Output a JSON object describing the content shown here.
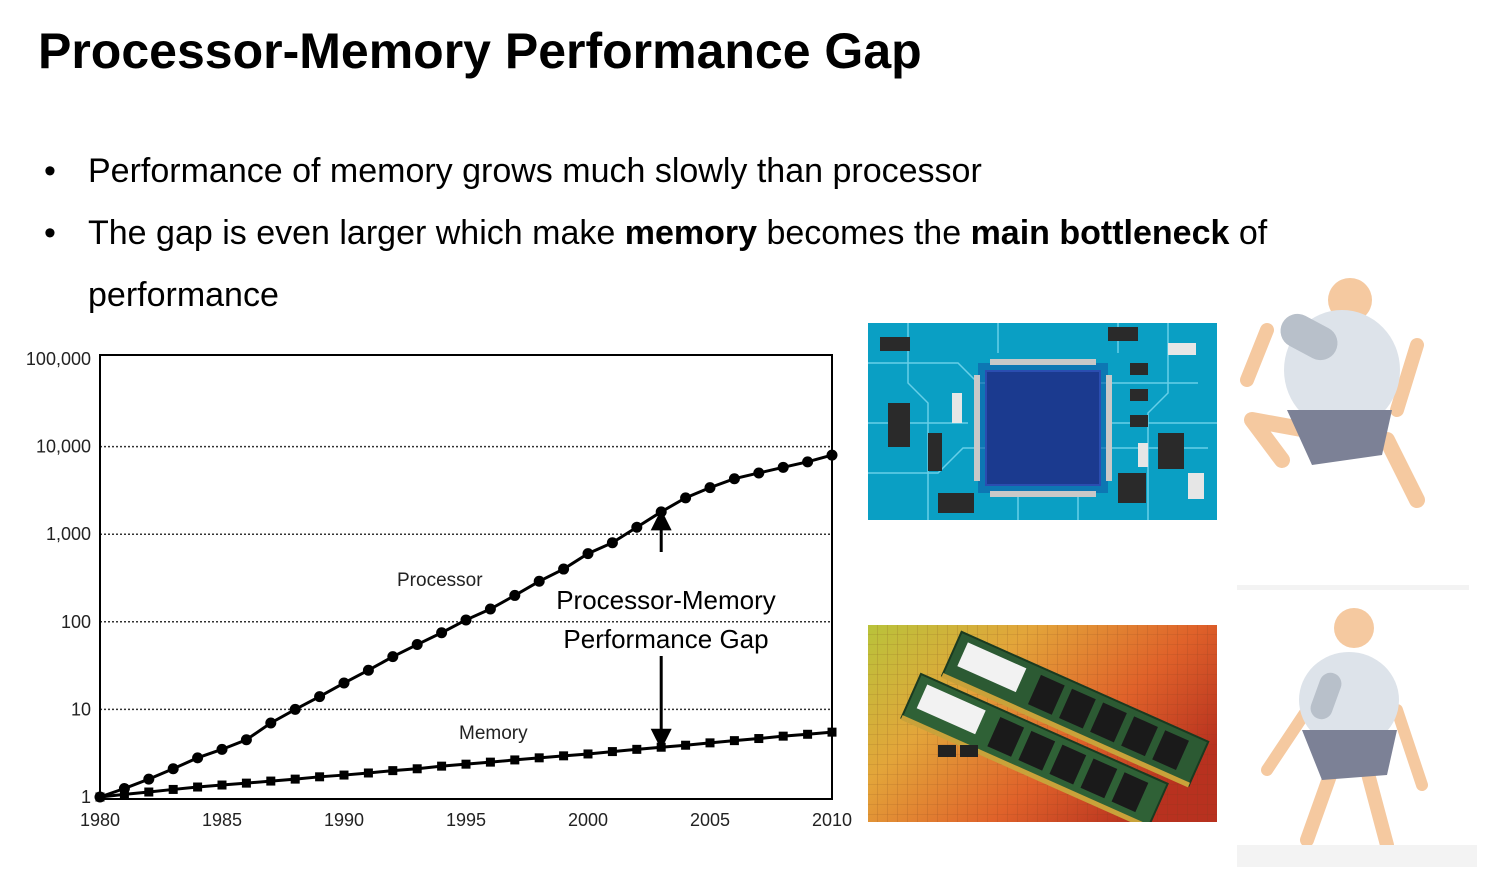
{
  "slide": {
    "title": "Processor-Memory Performance Gap",
    "bullets": [
      {
        "text_a": "Performance of memory grows much slowly than processor",
        "bold_a": "",
        "text_b": "",
        "bold_b": "",
        "text_c": ""
      },
      {
        "text_a": "The gap is even larger which make ",
        "bold_a": "memory",
        "text_b": " becomes the ",
        "bold_b": "main bottleneck",
        "text_c": " of performance"
      }
    ],
    "bullet_glyph": "•"
  },
  "images": {
    "circuit_board": "circuit-board-icon",
    "ram_modules": "ram-modules-icon",
    "runner_fast": "runner-fast-icon",
    "runner_slow": "runner-slow-icon",
    "colors": {
      "pcb": "#0a9fc4",
      "chip": "#1b3a8f",
      "wafer_warm": "#e0622a",
      "figure_skin": "#f5c9a0",
      "figure_body": "#dde3ea",
      "figure_shorts": "#7c8196"
    }
  },
  "chart_data": {
    "type": "line",
    "y_scale": "log",
    "ylim": [
      1,
      100000
    ],
    "xlim": [
      1980,
      2010
    ],
    "x_ticks": [
      1980,
      1985,
      1990,
      1995,
      2000,
      2005,
      2010
    ],
    "y_ticks": [
      {
        "value": 1,
        "label": "1"
      },
      {
        "value": 10,
        "label": "10"
      },
      {
        "value": 100,
        "label": "100"
      },
      {
        "value": 1000,
        "label": "1,000"
      },
      {
        "value": 10000,
        "label": "10,000"
      },
      {
        "value": 100000,
        "label": "100,000"
      }
    ],
    "grid": "horizontal dotted",
    "annotation": {
      "line1": "Processor-Memory",
      "line2": "Performance Gap",
      "x": 2003
    },
    "series": [
      {
        "name": "Processor",
        "marker": "circle",
        "x": [
          1980,
          1981,
          1982,
          1983,
          1984,
          1985,
          1986,
          1987,
          1988,
          1989,
          1990,
          1991,
          1992,
          1993,
          1994,
          1995,
          1996,
          1997,
          1998,
          1999,
          2000,
          2001,
          2002,
          2003,
          2004,
          2005,
          2006,
          2007,
          2008,
          2009,
          2010
        ],
        "values": [
          1,
          1.25,
          1.6,
          2.1,
          2.8,
          3.5,
          4.5,
          7,
          10,
          14,
          20,
          28,
          40,
          55,
          75,
          105,
          140,
          200,
          290,
          400,
          600,
          800,
          1200,
          1800,
          2600,
          3400,
          4300,
          5000,
          5800,
          6700,
          8000
        ]
      },
      {
        "name": "Memory",
        "marker": "square",
        "x": [
          1980,
          1981,
          1982,
          1983,
          1984,
          1985,
          1986,
          1987,
          1988,
          1989,
          1990,
          1991,
          1992,
          1993,
          1994,
          1995,
          1996,
          1997,
          1998,
          1999,
          2000,
          2001,
          2002,
          2003,
          2004,
          2005,
          2006,
          2007,
          2008,
          2009,
          2010
        ],
        "values": [
          1,
          1.07,
          1.14,
          1.22,
          1.3,
          1.37,
          1.44,
          1.52,
          1.6,
          1.7,
          1.78,
          1.88,
          2,
          2.1,
          2.25,
          2.37,
          2.5,
          2.65,
          2.8,
          2.95,
          3.1,
          3.3,
          3.5,
          3.7,
          3.9,
          4.15,
          4.4,
          4.65,
          4.95,
          5.2,
          5.5
        ]
      }
    ]
  }
}
